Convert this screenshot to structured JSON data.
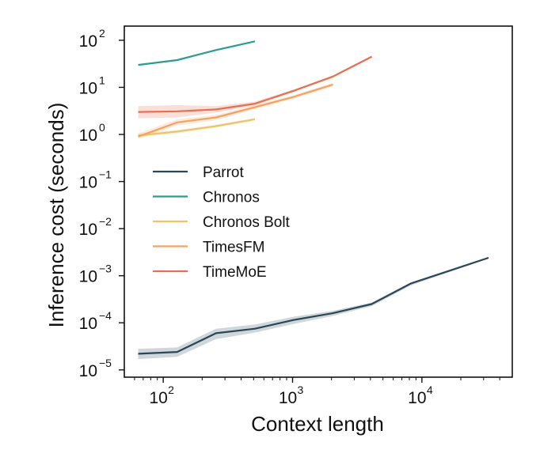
{
  "chart_data": {
    "type": "line",
    "xlabel": "Context length",
    "ylabel": "Inference cost (seconds)",
    "xscale": "log",
    "yscale": "log",
    "xlim": [
      50,
      50000
    ],
    "ylim": [
      7e-06,
      200
    ],
    "grid": false,
    "legend_position": "center-left",
    "x_ticks": [
      {
        "value": 100,
        "base": "10",
        "exp": "2"
      },
      {
        "value": 1000,
        "base": "10",
        "exp": "3"
      },
      {
        "value": 10000,
        "base": "10",
        "exp": "4"
      }
    ],
    "y_ticks": [
      {
        "value": 1e-05,
        "base": "10",
        "exp": "−5"
      },
      {
        "value": 0.0001,
        "base": "10",
        "exp": "−4"
      },
      {
        "value": 0.001,
        "base": "10",
        "exp": "−3"
      },
      {
        "value": 0.01,
        "base": "10",
        "exp": "−2"
      },
      {
        "value": 0.1,
        "base": "10",
        "exp": "−1"
      },
      {
        "value": 1,
        "base": "10",
        "exp": "0"
      },
      {
        "value": 10,
        "base": "10",
        "exp": "1"
      },
      {
        "value": 100,
        "base": "10",
        "exp": "2"
      }
    ],
    "series": [
      {
        "name": "Parrot",
        "color": "#2b4757",
        "x": [
          64,
          128,
          256,
          512,
          1024,
          2048,
          4096,
          8192,
          32768
        ],
        "y": [
          2.2e-05,
          2.4e-05,
          6e-05,
          7.5e-05,
          0.000115,
          0.00016,
          0.00025,
          0.00068,
          0.0024
        ],
        "y_low": [
          1.7e-05,
          1.9e-05,
          4.5e-05,
          6.2e-05,
          9.5e-05,
          0.00014,
          0.000225,
          0.00062,
          0.0023
        ],
        "y_high": [
          2.8e-05,
          3e-05,
          7.5e-05,
          9.2e-05,
          0.000135,
          0.00018,
          0.00027,
          0.00072,
          0.0025
        ]
      },
      {
        "name": "Chronos",
        "color": "#2a9d8f",
        "x": [
          64,
          128,
          256,
          512
        ],
        "y": [
          30,
          38,
          62,
          95
        ],
        "y_low": [
          29,
          37,
          60,
          92
        ],
        "y_high": [
          31,
          39,
          64,
          98
        ]
      },
      {
        "name": "Chronos Bolt",
        "color": "#e9c46a",
        "x": [
          64,
          128,
          256,
          512
        ],
        "y": [
          0.95,
          1.15,
          1.5,
          2.1
        ],
        "y_low": [
          0.88,
          1.05,
          1.38,
          1.95
        ],
        "y_high": [
          1.05,
          1.25,
          1.62,
          2.25
        ]
      },
      {
        "name": "TimesFM",
        "color": "#f4a261",
        "x": [
          64,
          128,
          256,
          512,
          1024,
          2048
        ],
        "y": [
          0.9,
          1.8,
          2.3,
          3.8,
          6.3,
          11.5
        ],
        "y_low": [
          0.8,
          1.55,
          2.0,
          3.4,
          5.8,
          10.5
        ],
        "y_high": [
          1.05,
          2.1,
          2.6,
          4.2,
          6.9,
          12.5
        ]
      },
      {
        "name": "TimeMoE",
        "color": "#e76f51",
        "x": [
          64,
          128,
          256,
          512,
          1024,
          2048,
          4096
        ],
        "y": [
          3.0,
          3.1,
          3.4,
          4.5,
          8.5,
          17,
          45
        ],
        "y_low": [
          2.2,
          2.3,
          2.9,
          4.1,
          8.0,
          16,
          43
        ],
        "y_high": [
          4.0,
          4.2,
          4.0,
          5.0,
          9.0,
          18,
          47
        ]
      }
    ]
  }
}
